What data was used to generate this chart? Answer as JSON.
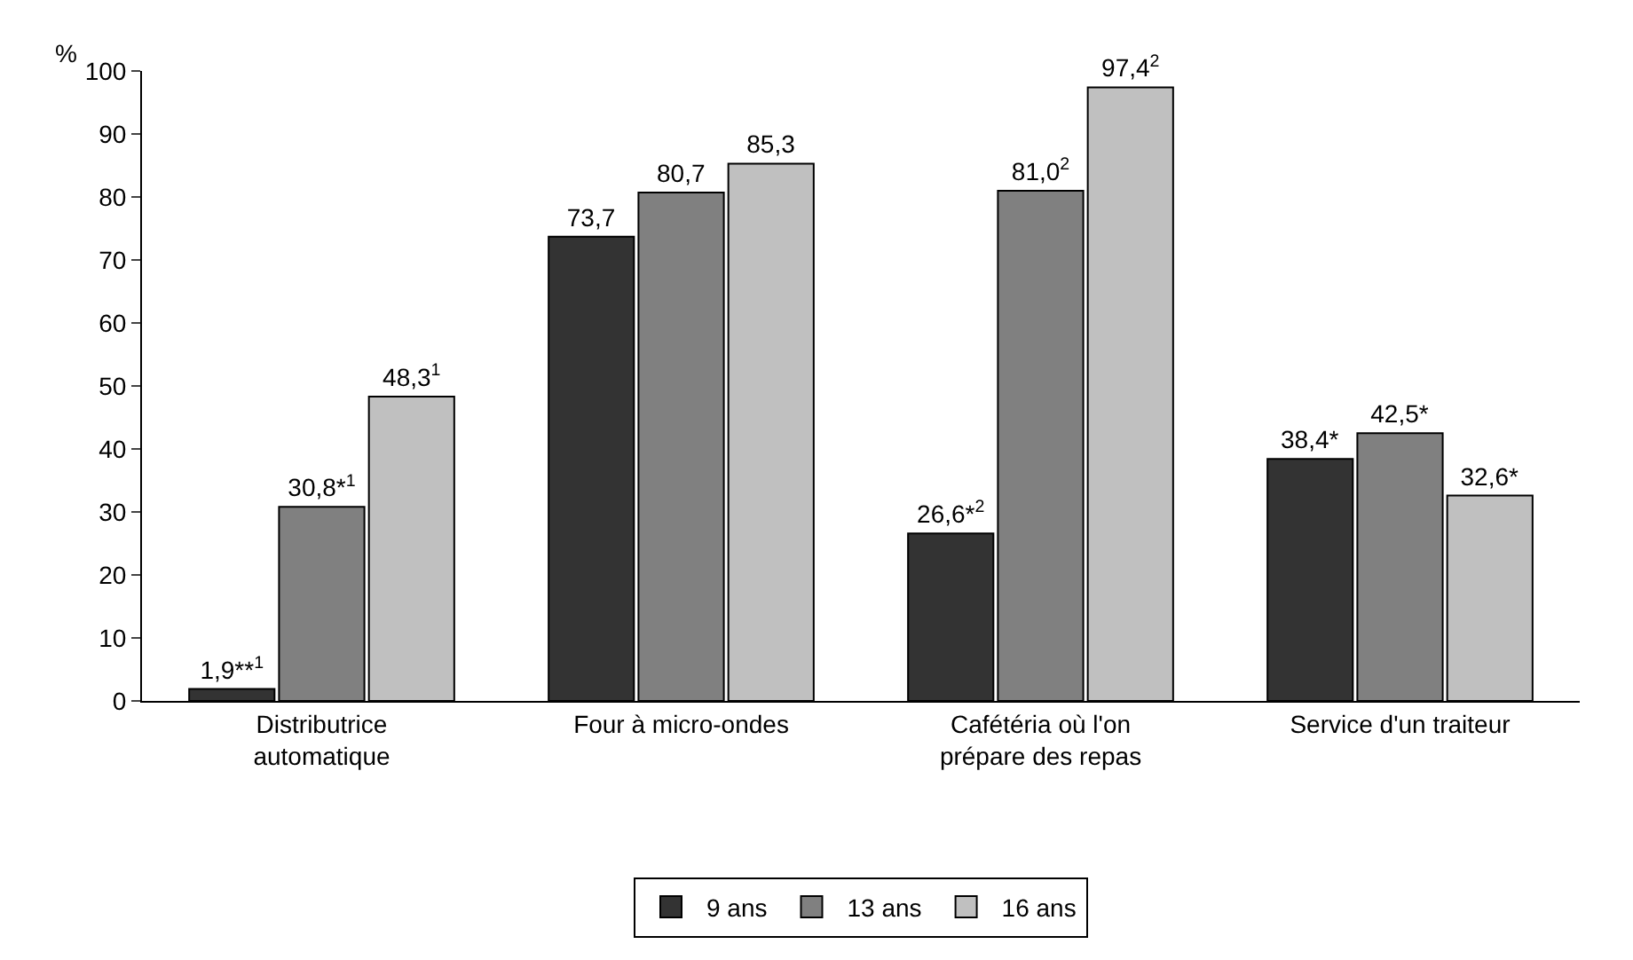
{
  "chart_data": {
    "type": "bar",
    "ylabel": "%",
    "categories": [
      "Distributrice\nautomatique",
      "Four à micro-ondes",
      "Cafétéria où l'on\nprépare des repas",
      "Service d'un traiteur"
    ],
    "series": [
      {
        "name": "9 ans",
        "color": "#333333",
        "values": [
          1.9,
          73.7,
          26.6,
          38.4
        ],
        "value_labels": [
          "1,9**$^{1}$",
          "73,7",
          "26,6*$^{2}$",
          "38,4*"
        ]
      },
      {
        "name": "13 ans",
        "color": "#808080",
        "values": [
          30.8,
          80.7,
          81.0,
          42.5
        ],
        "value_labels": [
          "30,8*$^{1}$",
          "80,7",
          "81,0$^{2}$",
          "42,5*"
        ]
      },
      {
        "name": "16 ans",
        "color": "#c0c0c0",
        "values": [
          48.3,
          85.3,
          97.4,
          32.6
        ],
        "value_labels": [
          "48,3$^{1}$",
          "85,3",
          "97,4$^{2}$",
          "32,6*"
        ]
      }
    ],
    "ylim": [
      0,
      100
    ],
    "yticks": [
      0,
      10,
      20,
      30,
      40,
      50,
      60,
      70,
      80,
      90,
      100
    ],
    "grid": false,
    "legend": "bottom"
  }
}
